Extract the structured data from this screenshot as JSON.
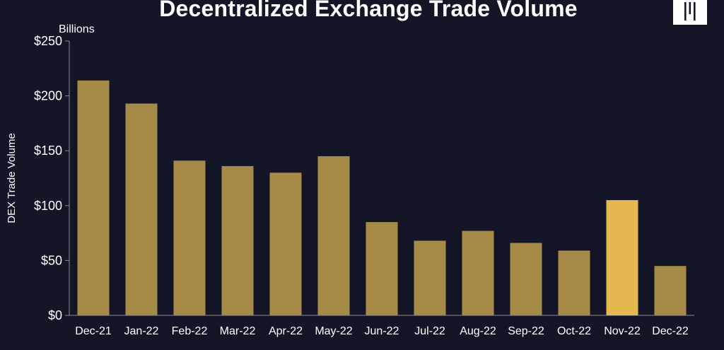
{
  "chart_data": {
    "type": "bar",
    "title": "Decentralized Exchange Trade Volume",
    "units_label": "Billions",
    "ylabel": "DEX Trade Volume",
    "xlabel": "",
    "categories": [
      "Dec-21",
      "Jan-22",
      "Feb-22",
      "Mar-22",
      "Apr-22",
      "May-22",
      "Jun-22",
      "Jul-22",
      "Aug-22",
      "Sep-22",
      "Oct-22",
      "Nov-22",
      "Dec-22"
    ],
    "values": [
      214,
      193,
      141,
      136,
      130,
      145,
      85,
      68,
      77,
      66,
      59,
      105,
      45
    ],
    "ylim": [
      0,
      250
    ],
    "yticks": [
      0,
      50,
      100,
      150,
      200,
      250
    ],
    "ytick_labels": [
      "$0",
      "$50",
      "$100",
      "$150",
      "$200",
      "$250"
    ],
    "highlight_index": 11,
    "grid": false,
    "legend": "none",
    "colors": {
      "bar": "#a68b48",
      "highlight": "#e3b94f",
      "axis": "#8a8a8a",
      "background": "#141628",
      "text": "#ffffff"
    }
  }
}
